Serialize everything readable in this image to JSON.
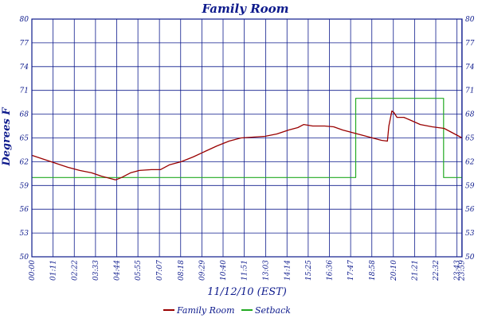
{
  "chart_data": {
    "type": "line",
    "title": "Family Room",
    "xlabel": "11/12/10 (EST)",
    "ylabel": "Degrees F",
    "ylim": [
      50,
      80
    ],
    "yticks": [
      50,
      53,
      56,
      59,
      62,
      65,
      68,
      71,
      74,
      77,
      80
    ],
    "xlim": [
      0,
      1440
    ],
    "xticks": [
      {
        "t": 0,
        "label": "00:00"
      },
      {
        "t": 71,
        "label": "01:11"
      },
      {
        "t": 142,
        "label": "02:22"
      },
      {
        "t": 213,
        "label": "03:33"
      },
      {
        "t": 284,
        "label": "04:44"
      },
      {
        "t": 355,
        "label": "05:55"
      },
      {
        "t": 427,
        "label": "07:07"
      },
      {
        "t": 498,
        "label": "08:18"
      },
      {
        "t": 569,
        "label": "09:29"
      },
      {
        "t": 640,
        "label": "10:40"
      },
      {
        "t": 711,
        "label": "11:51"
      },
      {
        "t": 783,
        "label": "13:03"
      },
      {
        "t": 854,
        "label": "14:14"
      },
      {
        "t": 925,
        "label": "15:25"
      },
      {
        "t": 996,
        "label": "16:36"
      },
      {
        "t": 1067,
        "label": "17:47"
      },
      {
        "t": 1138,
        "label": "18:58"
      },
      {
        "t": 1210,
        "label": "20:10"
      },
      {
        "t": 1281,
        "label": "21:21"
      },
      {
        "t": 1352,
        "label": "22:32"
      },
      {
        "t": 1423,
        "label": "23:43"
      },
      {
        "t": 1439,
        "label": "23:59"
      }
    ],
    "grid": true,
    "legend_position": "bottom-center",
    "series": [
      {
        "name": "Family Room",
        "color": "#990000",
        "points": [
          [
            0,
            62.8
          ],
          [
            40,
            62.3
          ],
          [
            80,
            61.8
          ],
          [
            120,
            61.3
          ],
          [
            160,
            60.9
          ],
          [
            200,
            60.6
          ],
          [
            230,
            60.2
          ],
          [
            260,
            59.9
          ],
          [
            280,
            59.7
          ],
          [
            300,
            60.0
          ],
          [
            330,
            60.6
          ],
          [
            360,
            60.9
          ],
          [
            400,
            61.0
          ],
          [
            430,
            61.0
          ],
          [
            460,
            61.6
          ],
          [
            500,
            62.0
          ],
          [
            540,
            62.6
          ],
          [
            580,
            63.3
          ],
          [
            620,
            64.0
          ],
          [
            660,
            64.6
          ],
          [
            700,
            65.0
          ],
          [
            740,
            65.1
          ],
          [
            780,
            65.2
          ],
          [
            820,
            65.5
          ],
          [
            860,
            66.0
          ],
          [
            890,
            66.3
          ],
          [
            910,
            66.7
          ],
          [
            940,
            66.5
          ],
          [
            980,
            66.5
          ],
          [
            1010,
            66.4
          ],
          [
            1040,
            66.0
          ],
          [
            1080,
            65.6
          ],
          [
            1110,
            65.3
          ],
          [
            1140,
            65.0
          ],
          [
            1170,
            64.7
          ],
          [
            1190,
            64.6
          ],
          [
            1195,
            66.5
          ],
          [
            1205,
            68.4
          ],
          [
            1212,
            68.2
          ],
          [
            1222,
            67.6
          ],
          [
            1245,
            67.6
          ],
          [
            1270,
            67.2
          ],
          [
            1300,
            66.7
          ],
          [
            1340,
            66.4
          ],
          [
            1380,
            66.2
          ],
          [
            1410,
            65.6
          ],
          [
            1440,
            65.0
          ]
        ]
      },
      {
        "name": "Setback",
        "color": "#22aa22",
        "points": [
          [
            0,
            60
          ],
          [
            1084,
            60
          ],
          [
            1084,
            70
          ],
          [
            1378,
            70
          ],
          [
            1378,
            60
          ],
          [
            1440,
            60
          ]
        ]
      }
    ]
  }
}
